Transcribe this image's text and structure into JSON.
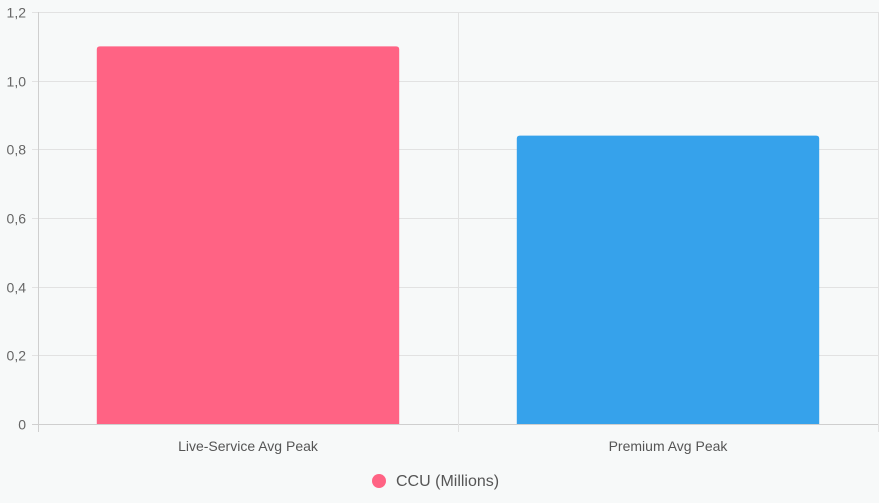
{
  "chart_data": {
    "type": "bar",
    "categories": [
      "Live-Service Avg Peak",
      "Premium Avg Peak"
    ],
    "series": [
      {
        "name": "CCU (Millions)",
        "values": [
          1.1,
          0.84
        ],
        "colors": [
          "#ff6384",
          "#36a2eb"
        ]
      }
    ],
    "ylim": [
      0,
      1.2
    ],
    "yticks": [
      "0",
      "0,2",
      "0,4",
      "0,6",
      "0,8",
      "1,0",
      "1,2"
    ],
    "ytick_values": [
      0,
      0.2,
      0.4,
      0.6,
      0.8,
      1.0,
      1.2
    ],
    "grid": true,
    "legend_position": "bottom",
    "title": "",
    "xlabel": "",
    "ylabel": ""
  },
  "legend": {
    "label": "CCU (Millions)",
    "marker_color": "#ff6384"
  }
}
